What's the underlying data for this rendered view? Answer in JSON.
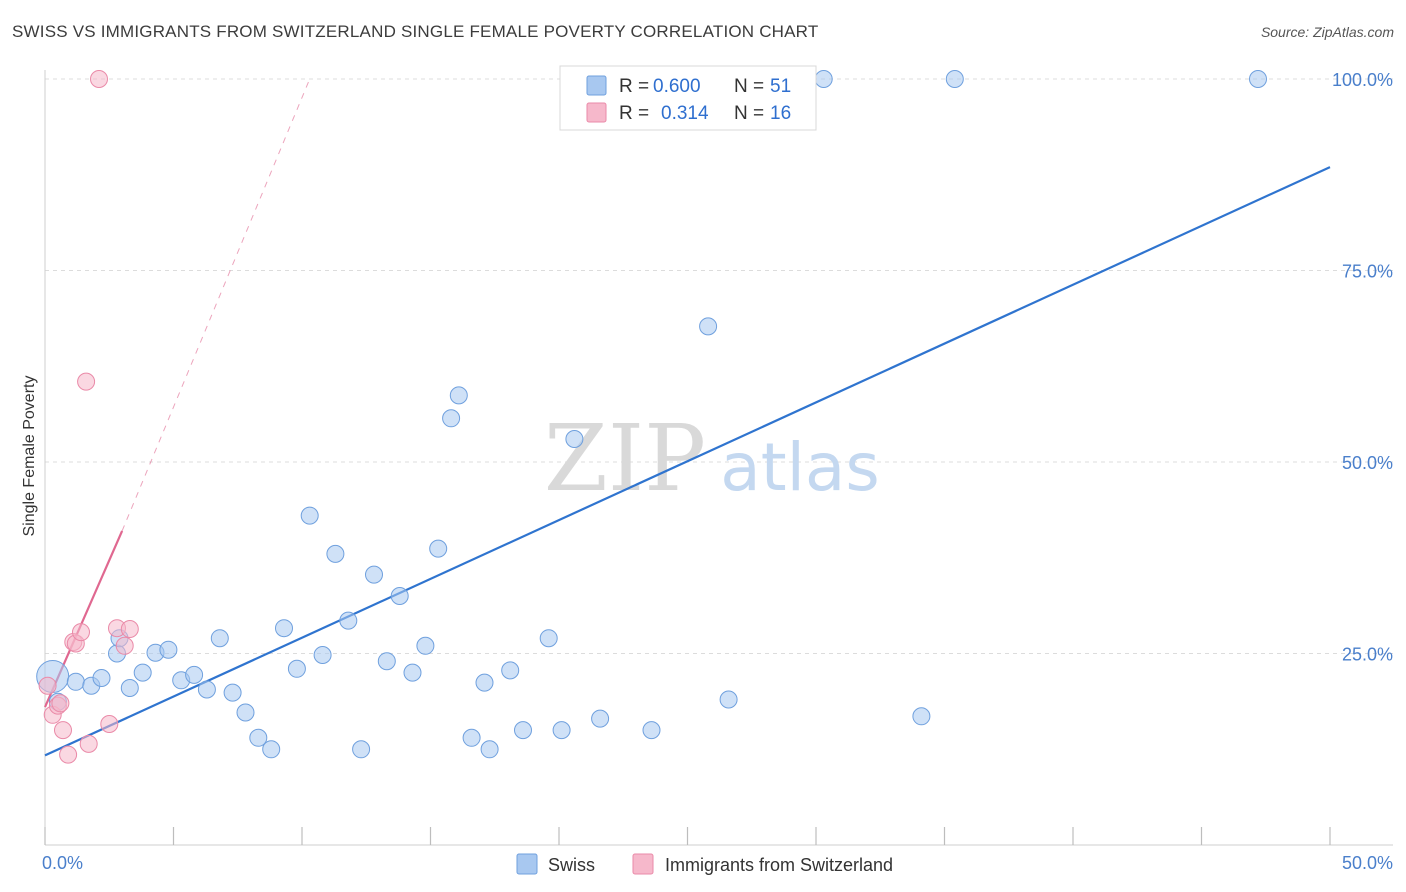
{
  "title": "SWISS VS IMMIGRANTS FROM SWITZERLAND SINGLE FEMALE POVERTY CORRELATION CHART",
  "source": "Source: ZipAtlas.com",
  "watermark": {
    "zip": "ZIP",
    "atlas": "atlas"
  },
  "chart_data": {
    "type": "scatter",
    "ylabel": "Single Female Poverty",
    "xlim": [
      0,
      50
    ],
    "ylim": [
      0,
      102
    ],
    "x_tick_labels": {
      "min": "0.0%",
      "max": "50.0%"
    },
    "y_ticks": [
      {
        "value": 25,
        "label": "25.0%"
      },
      {
        "value": 50,
        "label": "50.0%"
      },
      {
        "value": 75,
        "label": "75.0%"
      },
      {
        "value": 100,
        "label": "100.0%"
      }
    ],
    "grid": "horizontal dashed",
    "legend_stats": [
      {
        "r_label": "R =",
        "r_value": "0.600",
        "n_label": "N =",
        "n_value": "51",
        "color": "#a8c8f0"
      },
      {
        "r_label": "R =",
        "r_value": "0.314",
        "n_label": "N =",
        "n_value": "16",
        "color": "#f6b8cb"
      }
    ],
    "series": [
      {
        "name": "Swiss",
        "color": "#a8c8f0",
        "stroke": "#6fa0de",
        "trend": {
          "x": [
            0,
            50
          ],
          "y": [
            11.7,
            88.5
          ],
          "color": "#2f74cf"
        },
        "points": [
          [
            0.3,
            22.0,
            "big"
          ],
          [
            0.5,
            18.7
          ],
          [
            1.2,
            21.3
          ],
          [
            1.8,
            20.8
          ],
          [
            2.2,
            21.8
          ],
          [
            2.8,
            25.0
          ],
          [
            3.3,
            20.5
          ],
          [
            3.8,
            22.5
          ],
          [
            4.3,
            25.1
          ],
          [
            4.8,
            25.5
          ],
          [
            5.3,
            21.5
          ],
          [
            5.8,
            22.2
          ],
          [
            6.3,
            20.3
          ],
          [
            6.8,
            27.0
          ],
          [
            7.3,
            19.9
          ],
          [
            7.8,
            17.3
          ],
          [
            8.3,
            14.0
          ],
          [
            8.8,
            12.5
          ],
          [
            9.3,
            28.3
          ],
          [
            9.8,
            23.0
          ],
          [
            10.3,
            43.0
          ],
          [
            10.8,
            24.8
          ],
          [
            11.3,
            38.0
          ],
          [
            11.8,
            29.3
          ],
          [
            12.3,
            12.5
          ],
          [
            12.8,
            35.3
          ],
          [
            13.3,
            24.0
          ],
          [
            13.8,
            32.5
          ],
          [
            14.3,
            22.5
          ],
          [
            14.8,
            26.0
          ],
          [
            15.3,
            38.7
          ],
          [
            15.8,
            55.7
          ],
          [
            16.1,
            58.7
          ],
          [
            16.6,
            14.0
          ],
          [
            17.1,
            21.2
          ],
          [
            17.3,
            12.5
          ],
          [
            18.1,
            22.8
          ],
          [
            18.6,
            15.0
          ],
          [
            19.6,
            27.0
          ],
          [
            20.1,
            15.0
          ],
          [
            20.6,
            53.0
          ],
          [
            21.6,
            16.5
          ],
          [
            23.6,
            15.0
          ],
          [
            25.6,
            100.0
          ],
          [
            25.8,
            67.7
          ],
          [
            26.6,
            19.0
          ],
          [
            30.3,
            100.0
          ],
          [
            34.1,
            16.8
          ],
          [
            35.4,
            100.0
          ],
          [
            47.2,
            100.0
          ],
          [
            2.9,
            27.0
          ]
        ]
      },
      {
        "name": "Immigrants from Switzerland",
        "color": "#f6b8cb",
        "stroke": "#ea8aa8",
        "trend": {
          "x": [
            0,
            3.0
          ],
          "y": [
            18.0,
            41.0
          ],
          "color": "#e06890",
          "extended": {
            "x": [
              3.0,
              10.3
            ],
            "y": [
              41.0,
              100.0
            ]
          }
        },
        "points": [
          [
            0.1,
            20.8
          ],
          [
            0.3,
            17.0
          ],
          [
            0.5,
            18.2
          ],
          [
            0.7,
            15.0
          ],
          [
            0.9,
            11.8
          ],
          [
            1.1,
            26.5
          ],
          [
            1.2,
            26.3
          ],
          [
            1.4,
            27.8
          ],
          [
            1.6,
            60.5
          ],
          [
            1.7,
            13.2
          ],
          [
            2.5,
            15.8
          ],
          [
            2.8,
            28.3
          ],
          [
            3.1,
            26.0
          ],
          [
            3.3,
            28.2
          ],
          [
            2.1,
            100.0
          ],
          [
            0.6,
            18.5
          ]
        ]
      }
    ]
  }
}
